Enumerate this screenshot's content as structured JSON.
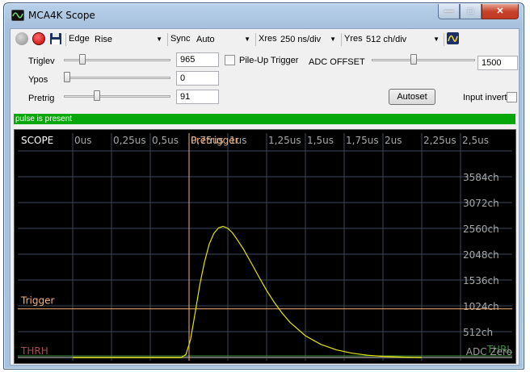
{
  "window": {
    "title": "MCA4K Scope"
  },
  "toolbar": {
    "edge_label": "Edge",
    "edge_value": "Rise",
    "sync_label": "Sync",
    "sync_value": "Auto",
    "xres_label": "Xres",
    "xres_value": "250 ns/div",
    "yres_label": "Yres",
    "yres_value": "512 ch/div"
  },
  "controls": {
    "triglev_label": "Triglev",
    "triglev_value": "965",
    "triglev_level": 0.15,
    "ypos_label": "Ypos",
    "ypos_value": "0",
    "ypos_level": 0.0,
    "pretrig_label": "Pretrig",
    "pretrig_value": "91",
    "pretrig_level": 0.3,
    "pileup_label": "Pile-Up Trigger",
    "pileup_checked": false,
    "adc_offset_label": "ADC OFFSET",
    "adc_offset_value": "1500",
    "adc_offset_level": 0.4,
    "autoset_label": "Autoset",
    "input_invert_label": "Input invert",
    "input_invert_checked": false
  },
  "status": {
    "text": "pulse is present",
    "color": "#06a70b"
  },
  "scope": {
    "title": "SCOPE",
    "x_ticks": [
      "0us",
      "0,25us",
      "0,5us",
      "0,75us",
      "1us",
      "1,25us",
      "1,5us",
      "1,75us",
      "2us",
      "2,25us",
      "2,5us"
    ],
    "y_ticks": [
      "512ch",
      "1024ch",
      "1536ch",
      "2048ch",
      "2560ch",
      "3072ch",
      "3584ch"
    ],
    "pretrigger_label": "Pretrigger",
    "trigger_label": "Trigger",
    "thrh_label": "THRH",
    "thrl_label": "THRL",
    "adc_zero_label": "ADC Zero",
    "trigger_level_ch": 965,
    "pretrigger_time_us": 0.75,
    "colors": {
      "background": "#000000",
      "grid": "#3c4a5a",
      "text": "#a8a8a8",
      "trace": "#e6e600",
      "trigger": "#f5b27a",
      "thrh": "#a05050",
      "thrl": "#3c8c3c"
    },
    "chart_data": {
      "type": "line",
      "title": "SCOPE",
      "xlabel": "",
      "ylabel": "",
      "xlim": [
        0,
        2.5
      ],
      "ylim": [
        0,
        4096
      ],
      "series": [
        {
          "x": [
            0.0,
            0.7,
            0.73,
            0.76,
            0.79,
            0.82,
            0.85,
            0.88,
            0.91,
            0.94,
            0.97,
            1.0,
            1.03,
            1.06,
            1.1,
            1.15,
            1.2,
            1.25,
            1.3,
            1.35,
            1.4,
            1.5,
            1.6,
            1.7,
            1.8,
            1.9,
            2.0,
            2.1,
            2.2,
            2.25
          ],
          "y": [
            0,
            0,
            60,
            360,
            900,
            1450,
            1900,
            2250,
            2460,
            2570,
            2600,
            2560,
            2470,
            2340,
            2150,
            1880,
            1600,
            1330,
            1090,
            880,
            700,
            430,
            260,
            150,
            85,
            45,
            22,
            10,
            3,
            0
          ]
        }
      ]
    }
  }
}
